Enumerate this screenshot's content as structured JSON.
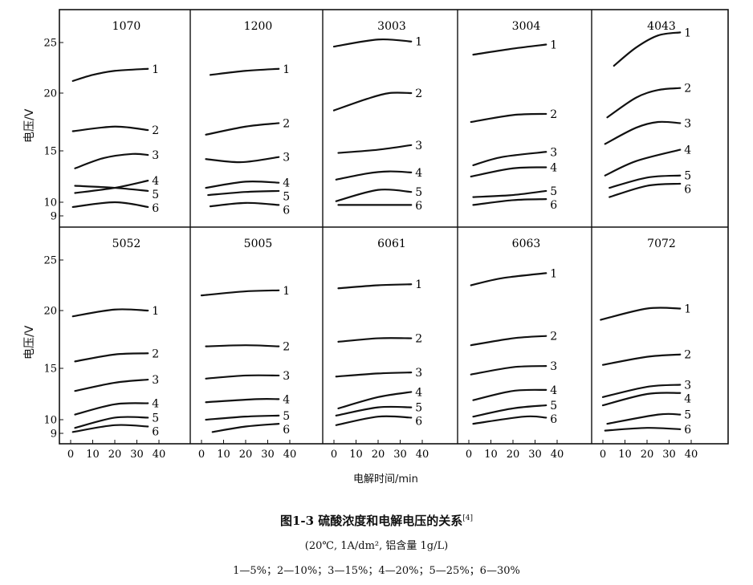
{
  "caption": {
    "title": "图1-3  硫酸浓度和电解电压的关系",
    "ref": "[4]",
    "conditions": "(20℃, 1A/dm², 铝含量 1g/L)",
    "legend": "1—5%；2—10%；3—15%；4—20%；5—25%；6—30%"
  },
  "chart_data": {
    "type": "line",
    "title": "硫酸浓度和电解电压的关系",
    "xlabel": "电解时间/min",
    "ylabel": "电压/V",
    "xticks": [
      0,
      10,
      20,
      30,
      40
    ],
    "yticks": [
      25,
      20,
      15,
      10,
      9
    ],
    "xlim": [
      -5,
      54
    ],
    "ylim": [
      7.5,
      28
    ],
    "grid": false,
    "series_labels": [
      "1",
      "2",
      "3",
      "4",
      "5",
      "6"
    ],
    "series_meaning": [
      "5%",
      "10%",
      "15%",
      "20%",
      "25%",
      "30%"
    ],
    "panels": [
      {
        "title": "1070",
        "series": [
          [
            [
              1,
              21.2
            ],
            [
              10,
              21.8
            ],
            [
              20,
              22.2
            ],
            [
              35,
              22.4
            ]
          ],
          [
            [
              1,
              16.7
            ],
            [
              20,
              17.1
            ],
            [
              35,
              16.8
            ]
          ],
          [
            [
              2,
              13.3
            ],
            [
              15,
              14.3
            ],
            [
              28,
              14.7
            ],
            [
              35,
              14.6
            ]
          ],
          [
            [
              2,
              10.9
            ],
            [
              20,
              11.4
            ],
            [
              35,
              12.1
            ]
          ],
          [
            [
              2,
              11.6
            ],
            [
              20,
              11.4
            ],
            [
              35,
              11.1
            ]
          ],
          [
            [
              1,
              9.65
            ],
            [
              20,
              10.0
            ],
            [
              35,
              9.65
            ]
          ]
        ]
      },
      {
        "title": "1200",
        "series": [
          [
            [
              4,
              21.8
            ],
            [
              20,
              22.2
            ],
            [
              35,
              22.4
            ]
          ],
          [
            [
              2,
              16.4
            ],
            [
              20,
              17.1
            ],
            [
              35,
              17.4
            ]
          ],
          [
            [
              2,
              14.2
            ],
            [
              18,
              13.9
            ],
            [
              35,
              14.4
            ]
          ],
          [
            [
              2,
              11.4
            ],
            [
              20,
              12.0
            ],
            [
              35,
              11.9
            ]
          ],
          [
            [
              3,
              10.7
            ],
            [
              20,
              11.0
            ],
            [
              35,
              11.1
            ]
          ],
          [
            [
              4,
              9.7
            ],
            [
              20,
              9.95
            ],
            [
              35,
              9.8
            ]
          ]
        ]
      },
      {
        "title": "3003",
        "series": [
          [
            [
              0,
              24.6
            ],
            [
              20,
              25.3
            ],
            [
              35,
              25.1
            ]
          ],
          [
            [
              0,
              18.5
            ],
            [
              15,
              19.5
            ],
            [
              25,
              20.0
            ],
            [
              35,
              20.0
            ]
          ],
          [
            [
              2,
              14.8
            ],
            [
              20,
              15.1
            ],
            [
              35,
              15.5
            ]
          ],
          [
            [
              1,
              12.2
            ],
            [
              15,
              12.8
            ],
            [
              25,
              13.0
            ],
            [
              35,
              12.9
            ]
          ],
          [
            [
              1,
              10.1
            ],
            [
              20,
              11.2
            ],
            [
              35,
              11.0
            ]
          ],
          [
            [
              2,
              9.8
            ],
            [
              35,
              9.8
            ]
          ]
        ]
      },
      {
        "title": "3004",
        "series": [
          [
            [
              2,
              23.8
            ],
            [
              20,
              24.4
            ],
            [
              35,
              24.8
            ]
          ],
          [
            [
              1,
              17.5
            ],
            [
              20,
              18.1
            ],
            [
              35,
              18.2
            ]
          ],
          [
            [
              2,
              13.6
            ],
            [
              15,
              14.4
            ],
            [
              35,
              14.9
            ]
          ],
          [
            [
              1,
              12.5
            ],
            [
              20,
              13.3
            ],
            [
              35,
              13.4
            ]
          ],
          [
            [
              2,
              10.5
            ],
            [
              20,
              10.7
            ],
            [
              35,
              11.1
            ]
          ],
          [
            [
              2,
              9.8
            ],
            [
              20,
              10.2
            ],
            [
              35,
              10.3
            ]
          ]
        ]
      },
      {
        "title": "4043",
        "series": [
          [
            [
              5,
              22.7
            ],
            [
              15,
              24.5
            ],
            [
              25,
              25.7
            ],
            [
              35,
              26.0
            ]
          ],
          [
            [
              2,
              17.9
            ],
            [
              15,
              19.6
            ],
            [
              25,
              20.3
            ],
            [
              35,
              20.5
            ]
          ],
          [
            [
              1,
              15.6
            ],
            [
              15,
              17.0
            ],
            [
              25,
              17.5
            ],
            [
              35,
              17.4
            ]
          ],
          [
            [
              1,
              12.6
            ],
            [
              15,
              14.0
            ],
            [
              35,
              15.1
            ]
          ],
          [
            [
              3,
              11.4
            ],
            [
              20,
              12.4
            ],
            [
              35,
              12.6
            ]
          ],
          [
            [
              3,
              10.5
            ],
            [
              20,
              11.6
            ],
            [
              35,
              11.8
            ]
          ]
        ]
      },
      {
        "title": "5052",
        "series": [
          [
            [
              1,
              19.5
            ],
            [
              20,
              20.1
            ],
            [
              35,
              20.0
            ]
          ],
          [
            [
              2,
              15.6
            ],
            [
              20,
              16.2
            ],
            [
              35,
              16.3
            ]
          ],
          [
            [
              2,
              12.8
            ],
            [
              20,
              13.6
            ],
            [
              35,
              13.9
            ]
          ],
          [
            [
              2,
              10.5
            ],
            [
              20,
              11.5
            ],
            [
              35,
              11.6
            ]
          ],
          [
            [
              2,
              9.4
            ],
            [
              20,
              10.2
            ],
            [
              35,
              10.2
            ]
          ],
          [
            [
              1,
              9.1
            ],
            [
              20,
              9.6
            ],
            [
              35,
              9.5
            ]
          ]
        ]
      },
      {
        "title": "5005",
        "series": [
          [
            [
              0,
              21.5
            ],
            [
              20,
              21.9
            ],
            [
              35,
              22.0
            ]
          ],
          [
            [
              2,
              16.9
            ],
            [
              20,
              17.0
            ],
            [
              35,
              16.9
            ]
          ],
          [
            [
              2,
              14.0
            ],
            [
              20,
              14.3
            ],
            [
              35,
              14.3
            ]
          ],
          [
            [
              2,
              11.7
            ],
            [
              25,
              12.0
            ],
            [
              35,
              12.0
            ]
          ],
          [
            [
              2,
              10.0
            ],
            [
              20,
              10.3
            ],
            [
              35,
              10.4
            ]
          ],
          [
            [
              5,
              9.1
            ],
            [
              20,
              9.5
            ],
            [
              35,
              9.7
            ]
          ]
        ]
      },
      {
        "title": "6061",
        "series": [
          [
            [
              2,
              22.2
            ],
            [
              20,
              22.5
            ],
            [
              35,
              22.6
            ]
          ],
          [
            [
              2,
              17.3
            ],
            [
              20,
              17.6
            ],
            [
              35,
              17.6
            ]
          ],
          [
            [
              1,
              14.2
            ],
            [
              20,
              14.5
            ],
            [
              35,
              14.6
            ]
          ],
          [
            [
              2,
              11.1
            ],
            [
              20,
              12.2
            ],
            [
              35,
              12.7
            ]
          ],
          [
            [
              1,
              10.4
            ],
            [
              20,
              11.2
            ],
            [
              35,
              11.2
            ]
          ],
          [
            [
              1,
              9.6
            ],
            [
              20,
              10.3
            ],
            [
              35,
              10.2
            ]
          ]
        ]
      },
      {
        "title": "6063",
        "series": [
          [
            [
              1,
              22.5
            ],
            [
              15,
              23.2
            ],
            [
              35,
              23.7
            ]
          ],
          [
            [
              1,
              17.0
            ],
            [
              20,
              17.6
            ],
            [
              35,
              17.8
            ]
          ],
          [
            [
              1,
              14.4
            ],
            [
              20,
              15.1
            ],
            [
              35,
              15.2
            ]
          ],
          [
            [
              2,
              11.9
            ],
            [
              20,
              12.8
            ],
            [
              35,
              12.9
            ]
          ],
          [
            [
              2,
              10.3
            ],
            [
              20,
              11.1
            ],
            [
              35,
              11.4
            ]
          ],
          [
            [
              2,
              9.7
            ],
            [
              25,
              10.3
            ],
            [
              35,
              10.2
            ]
          ]
        ]
      },
      {
        "title": "7072",
        "series": [
          [
            [
              -1,
              19.2
            ],
            [
              20,
              20.2
            ],
            [
              35,
              20.2
            ]
          ],
          [
            [
              0,
              15.3
            ],
            [
              20,
              16.0
            ],
            [
              35,
              16.2
            ]
          ],
          [
            [
              0,
              12.2
            ],
            [
              20,
              13.2
            ],
            [
              35,
              13.4
            ]
          ],
          [
            [
              0,
              11.4
            ],
            [
              20,
              12.5
            ],
            [
              35,
              12.6
            ]
          ],
          [
            [
              2,
              9.7
            ],
            [
              25,
              10.5
            ],
            [
              35,
              10.5
            ]
          ],
          [
            [
              1,
              9.2
            ],
            [
              20,
              9.4
            ],
            [
              35,
              9.3
            ]
          ]
        ]
      }
    ]
  }
}
